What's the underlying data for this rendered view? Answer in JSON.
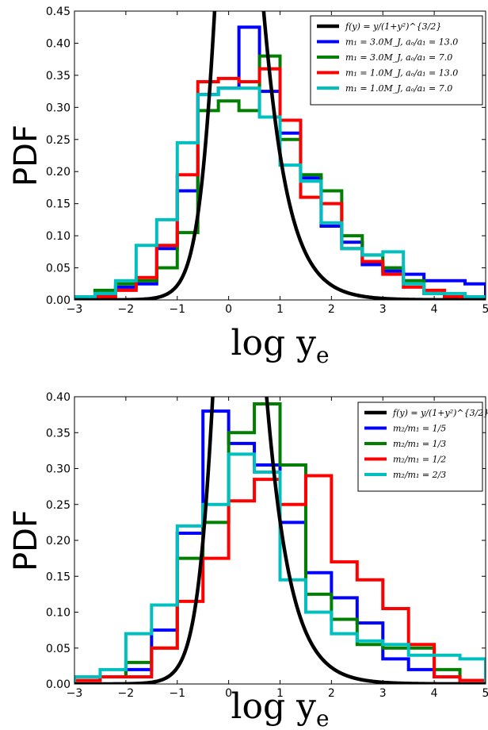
{
  "chart_data": [
    {
      "type": "line",
      "xlabel": "log y",
      "xlabel_sub": "e",
      "ylabel": "PDF",
      "xlim": [
        -3,
        5
      ],
      "ylim": [
        0,
        0.45
      ],
      "xticks": [
        "−3",
        "−2",
        "−1",
        "0",
        "1",
        "2",
        "3",
        "4",
        "5"
      ],
      "yticks": [
        "0.00",
        "0.05",
        "0.10",
        "0.15",
        "0.20",
        "0.25",
        "0.30",
        "0.35",
        "0.40",
        "0.45"
      ],
      "legend_position": "top-right",
      "bin_edges": [
        -3.0,
        -2.6,
        -2.2,
        -1.8,
        -1.4,
        -1.0,
        -0.6,
        -0.2,
        0.2,
        0.6,
        1.0,
        1.4,
        1.8,
        2.2,
        2.6,
        3.0,
        3.4,
        3.8,
        4.2,
        4.6,
        5.0
      ],
      "curve": {
        "name": "f(y) = y/(1+y²)^{3/2}",
        "color": "#000000"
      },
      "series": [
        {
          "name": "m₁ = 3.0M_J,  aₒ/a₁ = 13.0",
          "color": "#0000ff",
          "values": [
            0.005,
            0.01,
            0.02,
            0.025,
            0.08,
            0.17,
            0.32,
            0.33,
            0.425,
            0.325,
            0.26,
            0.19,
            0.115,
            0.09,
            0.055,
            0.045,
            0.04,
            0.03,
            0.03,
            0.025
          ]
        },
        {
          "name": "m₁ = 3.0M_J,  aₒ/a₁ = 7.0",
          "color": "#007f00",
          "values": [
            0.005,
            0.015,
            0.025,
            0.03,
            0.05,
            0.105,
            0.295,
            0.31,
            0.295,
            0.38,
            0.25,
            0.195,
            0.17,
            0.1,
            0.07,
            0.05,
            0.03,
            0.01,
            0.005,
            0.005
          ]
        },
        {
          "name": "m₁ = 1.0M_J,  aₒ/a₁ = 13.0",
          "color": "#ff0000",
          "values": [
            0.005,
            0.005,
            0.015,
            0.035,
            0.085,
            0.195,
            0.34,
            0.345,
            0.34,
            0.36,
            0.28,
            0.16,
            0.15,
            0.08,
            0.06,
            0.04,
            0.02,
            0.015,
            0.005,
            0.005
          ]
        },
        {
          "name": "m₁ = 1.0M_J,  aₒ/a₁ = 7.0",
          "color": "#00bfbf",
          "values": [
            0.005,
            0.01,
            0.03,
            0.085,
            0.125,
            0.245,
            0.32,
            0.33,
            0.33,
            0.285,
            0.21,
            0.185,
            0.12,
            0.08,
            0.07,
            0.075,
            0.025,
            0.01,
            0.01,
            0.005
          ]
        }
      ]
    },
    {
      "type": "line",
      "xlabel": "log y",
      "xlabel_sub": "e",
      "ylabel": "PDF",
      "xlim": [
        -3,
        5
      ],
      "ylim": [
        0,
        0.4
      ],
      "xticks": [
        "−3",
        "−2",
        "−1",
        "0",
        "1",
        "2",
        "3",
        "4",
        "5"
      ],
      "yticks": [
        "0.00",
        "0.05",
        "0.10",
        "0.15",
        "0.20",
        "0.25",
        "0.30",
        "0.35",
        "0.40"
      ],
      "legend_position": "top-right",
      "bin_edges": [
        -3.0,
        -2.5,
        -2.0,
        -1.5,
        -1.0,
        -0.5,
        0.0,
        0.5,
        1.0,
        1.5,
        2.0,
        2.5,
        3.0,
        3.5,
        4.0,
        4.5,
        5.0
      ],
      "curve": {
        "name": "f(y) = y/(1+y²)^{3/2}",
        "color": "#000000"
      },
      "series": [
        {
          "name": "m₂/m₁ = 1/5",
          "color": "#0000ff",
          "values": [
            0.005,
            0.01,
            0.02,
            0.075,
            0.21,
            0.38,
            0.335,
            0.305,
            0.225,
            0.155,
            0.12,
            0.085,
            0.035,
            0.02,
            0.01,
            0.005
          ]
        },
        {
          "name": "m₂/m₁ = 1/3",
          "color": "#007f00",
          "values": [
            0.005,
            0.01,
            0.03,
            0.05,
            0.175,
            0.225,
            0.35,
            0.39,
            0.305,
            0.125,
            0.09,
            0.055,
            0.05,
            0.05,
            0.02,
            0.005
          ]
        },
        {
          "name": "m₂/m₁ = 1/2",
          "color": "#ff0000",
          "values": [
            0.005,
            0.01,
            0.01,
            0.05,
            0.115,
            0.175,
            0.255,
            0.285,
            0.25,
            0.29,
            0.17,
            0.145,
            0.105,
            0.055,
            0.01,
            0.005
          ]
        },
        {
          "name": "m₂/m₁ = 2/3",
          "color": "#00bfbf",
          "values": [
            0.01,
            0.02,
            0.07,
            0.11,
            0.22,
            0.25,
            0.32,
            0.295,
            0.145,
            0.1,
            0.07,
            0.06,
            0.055,
            0.04,
            0.04,
            0.035
          ]
        }
      ]
    }
  ]
}
